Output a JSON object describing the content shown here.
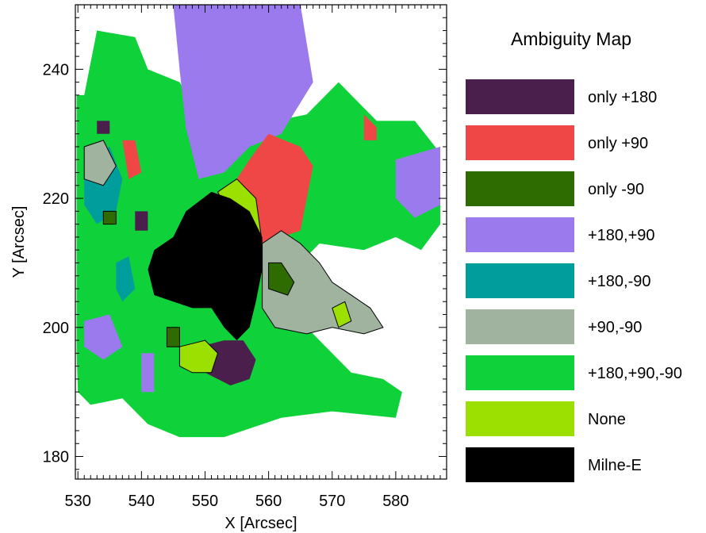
{
  "chart_data": {
    "type": "heatmap",
    "title": "",
    "xlabel": "X [Arcsec]",
    "ylabel": "Y [Arcsec]",
    "xlim": [
      529.6,
      588.0
    ],
    "ylim": [
      176.5,
      250.0
    ],
    "x_ticks": [
      530,
      540,
      550,
      560,
      570,
      580
    ],
    "y_ticks": [
      180,
      200,
      220,
      240
    ],
    "grid": false,
    "legend": {
      "title": "Ambiguity Map",
      "placement": "right",
      "entries": [
        {
          "label": "only +180",
          "color": "#4b1f4b"
        },
        {
          "label": "only +90",
          "color": "#ef4646"
        },
        {
          "label": "only -90",
          "color": "#2e6b00"
        },
        {
          "label": "+180,+90",
          "color": "#9a7aed"
        },
        {
          "label": "+180,-90",
          "color": "#009d9d"
        },
        {
          "label": "+90,-90",
          "color": "#9fb39f"
        },
        {
          "label": "+180,+90,-90",
          "color": "#0fd23a"
        },
        {
          "label": "None",
          "color": "#9be000"
        },
        {
          "label": "Milne-E",
          "color": "#000000"
        }
      ]
    },
    "regions": [
      {
        "category": "+180,+90,-90",
        "color": "#0fd23a",
        "polygon": [
          [
            531,
            236
          ],
          [
            533,
            246
          ],
          [
            539,
            245
          ],
          [
            541,
            240
          ],
          [
            546,
            238
          ],
          [
            549,
            233
          ],
          [
            556,
            231
          ],
          [
            566,
            233
          ],
          [
            571,
            238
          ],
          [
            577,
            232
          ],
          [
            583,
            232
          ],
          [
            587,
            227
          ],
          [
            587,
            216
          ],
          [
            584,
            212
          ],
          [
            580,
            214
          ],
          [
            575,
            212
          ],
          [
            568,
            213
          ],
          [
            563,
            208
          ],
          [
            562,
            205
          ],
          [
            566,
            200
          ],
          [
            569,
            197
          ],
          [
            573,
            193
          ],
          [
            578,
            192
          ],
          [
            581,
            190
          ],
          [
            580,
            186
          ],
          [
            570,
            187
          ],
          [
            562,
            186
          ],
          [
            553,
            183
          ],
          [
            546,
            183
          ],
          [
            541,
            185
          ],
          [
            537,
            189
          ],
          [
            532,
            188
          ],
          [
            530,
            190
          ],
          [
            529.8,
            196
          ],
          [
            529.8,
            236
          ]
        ]
      },
      {
        "category": "+180,+90",
        "color": "#9a7aed",
        "polygon": [
          [
            545,
            250
          ],
          [
            565,
            250
          ],
          [
            567,
            238
          ],
          [
            562,
            230
          ],
          [
            557,
            228
          ],
          [
            553,
            224
          ],
          [
            549,
            223
          ],
          [
            547,
            231
          ],
          [
            546,
            240
          ]
        ]
      },
      {
        "category": "+180,+90",
        "color": "#9a7aed",
        "polygon": [
          [
            580,
            226
          ],
          [
            587,
            228
          ],
          [
            587,
            219
          ],
          [
            583,
            217
          ],
          [
            580,
            220
          ]
        ]
      },
      {
        "category": "+180,+90",
        "color": "#9a7aed",
        "polygon": [
          [
            531,
            201
          ],
          [
            535,
            202
          ],
          [
            537,
            197
          ],
          [
            534,
            195
          ],
          [
            531,
            197
          ]
        ]
      },
      {
        "category": "+180,+90",
        "color": "#9a7aed",
        "polygon": [
          [
            540,
            196
          ],
          [
            542,
            196
          ],
          [
            542,
            190
          ],
          [
            540,
            190
          ]
        ]
      },
      {
        "category": "+180,-90",
        "color": "#009d9d",
        "polygon": [
          [
            531,
            226
          ],
          [
            535,
            228
          ],
          [
            537,
            223
          ],
          [
            536,
            218
          ],
          [
            533,
            216
          ],
          [
            531,
            219
          ]
        ]
      },
      {
        "category": "+180,-90",
        "color": "#009d9d",
        "polygon": [
          [
            536,
            210
          ],
          [
            538,
            211
          ],
          [
            539,
            206
          ],
          [
            537,
            204
          ],
          [
            536,
            206
          ]
        ]
      },
      {
        "category": "only +90",
        "color": "#ef4646",
        "polygon": [
          [
            553,
            220
          ],
          [
            557,
            226
          ],
          [
            560,
            230
          ],
          [
            565,
            228
          ],
          [
            567,
            225
          ],
          [
            566,
            220
          ],
          [
            565,
            215
          ],
          [
            562,
            214
          ],
          [
            560,
            212
          ],
          [
            559,
            213
          ]
        ]
      },
      {
        "category": "only +90",
        "color": "#ef4646",
        "polygon": [
          [
            537,
            229
          ],
          [
            539,
            229
          ],
          [
            540,
            224
          ],
          [
            538,
            223
          ]
        ]
      },
      {
        "category": "only +90",
        "color": "#ef4646",
        "polygon": [
          [
            575,
            233
          ],
          [
            577,
            231
          ],
          [
            577,
            229
          ],
          [
            575,
            229
          ]
        ]
      },
      {
        "category": "+90,-90",
        "color": "#9fb39f",
        "polygon": [
          [
            559,
            213
          ],
          [
            562,
            215
          ],
          [
            565,
            213
          ],
          [
            568,
            210
          ],
          [
            570,
            207
          ],
          [
            573,
            205
          ],
          [
            576,
            203
          ],
          [
            578,
            200
          ],
          [
            575,
            199
          ],
          [
            570,
            200
          ],
          [
            566,
            199
          ],
          [
            561,
            200
          ],
          [
            559,
            203
          ]
        ]
      },
      {
        "category": "+90,-90",
        "color": "#9fb39f",
        "polygon": [
          [
            531,
            228
          ],
          [
            534,
            229
          ],
          [
            536,
            225
          ],
          [
            534,
            222
          ],
          [
            531,
            223
          ]
        ]
      },
      {
        "category": "only -90",
        "color": "#2e6b00",
        "polygon": [
          [
            560,
            210
          ],
          [
            562,
            210
          ],
          [
            564,
            207
          ],
          [
            563,
            205
          ],
          [
            560,
            206
          ]
        ]
      },
      {
        "category": "only -90",
        "color": "#2e6b00",
        "polygon": [
          [
            544,
            200
          ],
          [
            546,
            200
          ],
          [
            546,
            197
          ],
          [
            544,
            197
          ]
        ]
      },
      {
        "category": "only -90",
        "color": "#2e6b00",
        "polygon": [
          [
            534,
            218
          ],
          [
            536,
            218
          ],
          [
            536,
            216
          ],
          [
            534,
            216
          ]
        ]
      },
      {
        "category": "only +180",
        "color": "#4b1f4b",
        "polygon": [
          [
            549,
            197
          ],
          [
            553,
            198
          ],
          [
            556,
            198
          ],
          [
            558,
            195
          ],
          [
            557,
            192
          ],
          [
            554,
            191
          ],
          [
            550,
            193
          ],
          [
            548,
            194
          ]
        ]
      },
      {
        "category": "only +180",
        "color": "#4b1f4b",
        "polygon": [
          [
            533,
            232
          ],
          [
            535,
            232
          ],
          [
            535,
            230
          ],
          [
            533,
            230
          ]
        ]
      },
      {
        "category": "only +180",
        "color": "#4b1f4b",
        "polygon": [
          [
            539,
            218
          ],
          [
            541,
            218
          ],
          [
            541,
            215
          ],
          [
            539,
            215
          ]
        ]
      },
      {
        "category": "None",
        "color": "#9be000",
        "polygon": [
          [
            546,
            197
          ],
          [
            550,
            198
          ],
          [
            552,
            196
          ],
          [
            551,
            193
          ],
          [
            548,
            193
          ],
          [
            546,
            194
          ]
        ]
      },
      {
        "category": "None",
        "color": "#9be000",
        "polygon": [
          [
            552,
            221
          ],
          [
            555,
            223
          ],
          [
            558,
            220
          ],
          [
            559,
            213
          ],
          [
            556,
            213
          ],
          [
            554,
            217
          ]
        ]
      },
      {
        "category": "None",
        "color": "#9be000",
        "polygon": [
          [
            570,
            203
          ],
          [
            572,
            204
          ],
          [
            573,
            201
          ],
          [
            571,
            200
          ]
        ]
      },
      {
        "category": "Milne-E",
        "color": "#000000",
        "polygon": [
          [
            541,
            209
          ],
          [
            542,
            212
          ],
          [
            545,
            214
          ],
          [
            547,
            218
          ],
          [
            551,
            221
          ],
          [
            554,
            220
          ],
          [
            557,
            218
          ],
          [
            559,
            214
          ],
          [
            559,
            209
          ],
          [
            558,
            204
          ],
          [
            557,
            200
          ],
          [
            555,
            198
          ],
          [
            553,
            200
          ],
          [
            551,
            203
          ],
          [
            548,
            203
          ],
          [
            545,
            204
          ],
          [
            542,
            205
          ]
        ]
      }
    ]
  }
}
